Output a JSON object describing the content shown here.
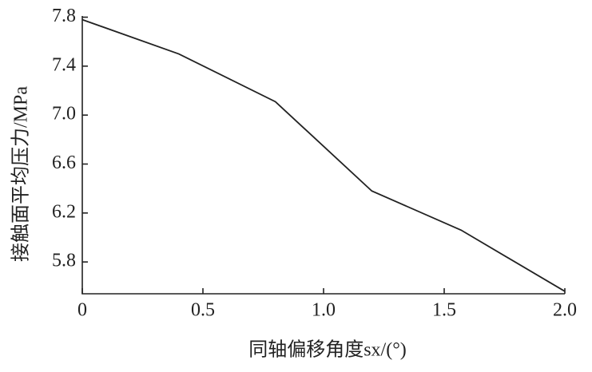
{
  "chart_data": {
    "type": "line",
    "x_label": "同轴偏移角度sx/(°)",
    "y_label": "接触面平均压力/MPa",
    "x": [
      0,
      0.4,
      0.8,
      1.2,
      1.57,
      2.0
    ],
    "series": [
      {
        "color": "#222222",
        "values": [
          7.78,
          7.5,
          7.11,
          6.38,
          6.06,
          5.56
        ]
      }
    ],
    "xlim": [
      0,
      2.0
    ],
    "xticks": [
      0,
      0.5,
      {
        "value": 1.0,
        "label": "1.0"
      },
      1.5,
      {
        "value": 2.0,
        "label": "2.0"
      }
    ],
    "ylim": [
      5.54,
      7.81
    ],
    "yticks": [
      {
        "value": 5.8,
        "label": "5.8"
      },
      6.2,
      6.6,
      {
        "value": 7.0,
        "label": "7.0"
      },
      7.4,
      7.8
    ],
    "grid": false
  }
}
